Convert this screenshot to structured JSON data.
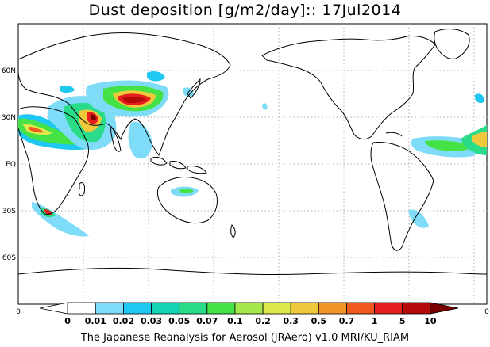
{
  "title": "Dust deposition [g/m2/day]:: 17Jul2014",
  "footer": "The Japanese Reanalysis for Aerosol (JRAero) v1.0 MRI/KU_RIAM",
  "lat_labels": [
    "60N",
    "30N",
    "EQ",
    "30S",
    "60S"
  ],
  "axis_ends": {
    "left": "0",
    "right": "0"
  },
  "colorbar": {
    "labels": [
      "0",
      "0.01",
      "0.02",
      "0.03",
      "0.05",
      "0.07",
      "0.1",
      "0.2",
      "0.3",
      "0.5",
      "0.7",
      "1",
      "5",
      "10"
    ],
    "colors": [
      "#ffffff",
      "#ffffff",
      "#7fdcf8",
      "#1ec8f0",
      "#14d2b4",
      "#2adc8a",
      "#44e244",
      "#a4e84c",
      "#dce84c",
      "#f0c83c",
      "#f09628",
      "#f05a1e",
      "#e61e1e",
      "#b40a0a",
      "#7a0000"
    ]
  }
}
